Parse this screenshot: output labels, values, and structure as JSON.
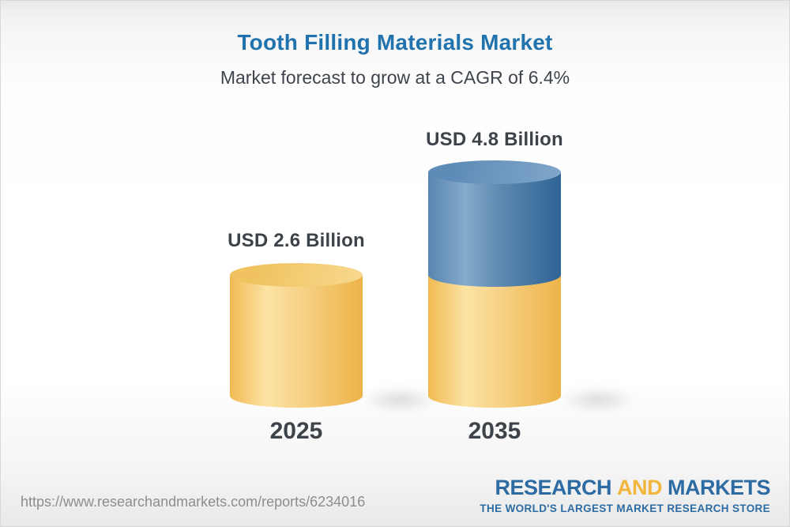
{
  "chart_data": {
    "type": "bar",
    "variant": "3d-stacked-cylinder",
    "title": "Tooth Filling Materials Market",
    "subtitle": "Market forecast to grow at a CAGR of 6.4%",
    "cagr_percent": 6.4,
    "unit": "USD Billion",
    "categories": [
      "2025",
      "2035"
    ],
    "values": [
      2.6,
      4.8
    ],
    "grid": false,
    "legend_position": "none",
    "axes_hidden": true,
    "bars": [
      {
        "year": "2025",
        "value": 2.6,
        "value_label": "USD 2.6 Billion",
        "segments": [
          {
            "value": 2.6,
            "color": "gold"
          }
        ]
      },
      {
        "year": "2035",
        "value": 4.8,
        "value_label": "USD 4.8 Billion",
        "segments": [
          {
            "value": 2.6,
            "color": "gold"
          },
          {
            "value": 2.2,
            "color": "blue"
          }
        ]
      }
    ],
    "colors": {
      "gold": {
        "body": [
          [
            "0%",
            "#f0ba52"
          ],
          [
            "28%",
            "#fce3a4"
          ],
          [
            "55%",
            "#f6d185"
          ],
          [
            "100%",
            "#edb348"
          ]
        ],
        "cap": [
          "#f0c260",
          "#f7d88c"
        ]
      },
      "blue": {
        "body": [
          [
            "0%",
            "#5886b1"
          ],
          [
            "28%",
            "#85aacb"
          ],
          [
            "55%",
            "#5d88b0"
          ],
          [
            "100%",
            "#2e6496"
          ]
        ],
        "cap": [
          "#5e8cb8",
          "#7fa5c9"
        ]
      }
    }
  },
  "footer": {
    "url": "https://www.researchandmarkets.com/reports/6234016",
    "logo": {
      "word1": "RESEARCH",
      "word2": "AND",
      "word3": "MARKETS",
      "tagline": "THE WORLD'S LARGEST MARKET RESEARCH STORE",
      "blue": "#2d6ba3",
      "gold": "#f2b63c"
    }
  },
  "theme": {
    "title_color": "#2173ae",
    "subtitle_color": "#3e444b",
    "label_color": "#3d4349",
    "url_color": "#8d8d8d"
  }
}
